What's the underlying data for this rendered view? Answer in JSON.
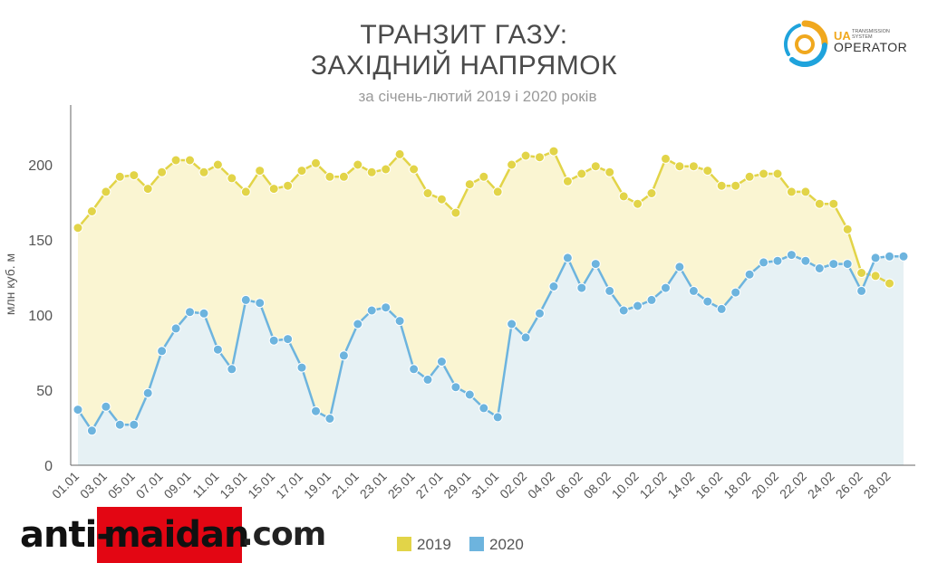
{
  "header": {
    "title_line1": "ТРАНЗИТ ГАЗУ:",
    "title_line2": "ЗАХІДНИЙ НАПРЯМОК",
    "subtitle": "за січень-лютий 2019 і 2020 років"
  },
  "logo": {
    "prefix": "UA",
    "small_line1": "TRANSMISSION",
    "small_line2": "SYSTEM",
    "name": "OPERATOR",
    "colors": [
      "#f0a81e",
      "#1fa3dc"
    ]
  },
  "watermark": {
    "part1": "anti-",
    "part2": "maidan",
    "part3": ".com",
    "color": "#e30613"
  },
  "chart_data": {
    "type": "area",
    "ylabel": "млн куб. м",
    "ylim": [
      0,
      230
    ],
    "yticks": [
      0,
      50,
      100,
      150,
      200
    ],
    "x_tick_labels": [
      "01.01",
      "03.01",
      "05.01",
      "07.01",
      "09.01",
      "11.01",
      "13.01",
      "15.01",
      "17.01",
      "19.01",
      "21.01",
      "23.01",
      "25.01",
      "27.01",
      "29.01",
      "31.01",
      "02.02",
      "04.02",
      "06.02",
      "08.02",
      "10.02",
      "12.02",
      "14.02",
      "16.02",
      "18.02",
      "20.02",
      "22.02",
      "24.02",
      "26.02",
      "28.02"
    ],
    "legend_position": "bottom",
    "series": [
      {
        "name": "2019",
        "color": "#e2d448",
        "fill": "#faf5d2",
        "values": [
          158,
          169,
          182,
          192,
          193,
          184,
          195,
          203,
          203,
          195,
          200,
          191,
          182,
          196,
          184,
          186,
          196,
          201,
          192,
          192,
          200,
          195,
          197,
          207,
          197,
          181,
          177,
          168,
          187,
          192,
          182,
          200,
          206,
          205,
          209,
          189,
          194,
          199,
          195,
          179,
          174,
          181,
          204,
          199,
          199,
          196,
          186,
          186,
          192,
          194,
          194,
          182,
          182,
          174,
          174,
          157,
          128,
          126,
          121
        ]
      },
      {
        "name": "2020",
        "color": "#6db4de",
        "fill": "#e6f1f4",
        "values": [
          37,
          23,
          39,
          27,
          27,
          48,
          76,
          91,
          102,
          101,
          77,
          64,
          110,
          108,
          83,
          84,
          65,
          36,
          31,
          73,
          94,
          103,
          105,
          96,
          64,
          57,
          69,
          52,
          47,
          38,
          32,
          94,
          85,
          101,
          119,
          138,
          118,
          134,
          116,
          103,
          106,
          110,
          118,
          132,
          116,
          109,
          104,
          115,
          127,
          135,
          136,
          140,
          136,
          131,
          134,
          134,
          116,
          138,
          139,
          139
        ]
      }
    ]
  }
}
